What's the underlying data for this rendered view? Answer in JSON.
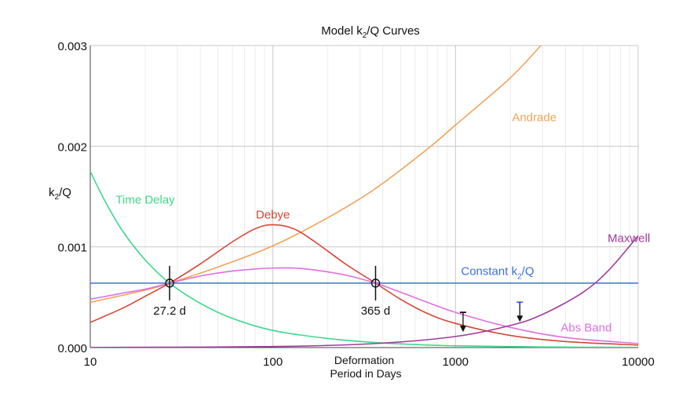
{
  "chart_data": {
    "type": "line",
    "title": {
      "pre": "Model k",
      "sub": "2",
      "post": "/Q Curves"
    },
    "ylabel": {
      "pre": "k",
      "sub": "2",
      "post": "/Q"
    },
    "xlabel": [
      "Deformation",
      "Period in Days"
    ],
    "x_scale": "log",
    "xlim": [
      10,
      10000
    ],
    "ylim": [
      0,
      0.003
    ],
    "grid": true,
    "x_ticks": [
      {
        "value": 10,
        "label": "10"
      },
      {
        "value": 100,
        "label": "100"
      },
      {
        "value": 1000,
        "label": "1000"
      },
      {
        "value": 10000,
        "label": "10000"
      }
    ],
    "y_ticks": [
      {
        "value": 0,
        "label": "0.000"
      },
      {
        "value": 0.001,
        "label": "0.001"
      },
      {
        "value": 0.002,
        "label": "0.002"
      },
      {
        "value": 0.003,
        "label": "0.003"
      }
    ],
    "series": [
      {
        "name": "Constant k2/Q",
        "label": {
          "pre": "Constant k",
          "sub": "2",
          "post": "/Q"
        },
        "color": "#3a6fe0",
        "label_at": {
          "x": 1700,
          "y": 0.00072
        },
        "x": [
          10,
          10000
        ],
        "y": [
          0.00064,
          0.00064
        ]
      },
      {
        "name": "Andrade",
        "label": {
          "pre": "Andrade"
        },
        "color": "#f0a35a",
        "label_at": {
          "x": 2700,
          "y": 0.00225
        },
        "x": [
          10,
          20,
          27.2,
          50,
          100,
          200,
          365,
          700,
          1000,
          2000,
          3000
        ],
        "y": [
          0.00045,
          0.00057,
          0.00064,
          0.0008,
          0.00101,
          0.00129,
          0.00158,
          0.00197,
          0.00221,
          0.00268,
          0.00302
        ]
      },
      {
        "name": "Debye",
        "label": {
          "pre": "Debye"
        },
        "color": "#d64535",
        "label_at": {
          "x": 100,
          "y": 0.00128
        },
        "x": [
          10,
          15,
          20,
          27.2,
          40,
          60,
          80,
          100,
          130,
          170,
          250,
          365,
          500,
          700,
          1000,
          2000,
          4000,
          10000
        ],
        "y": [
          0.00025,
          0.00039,
          0.00051,
          0.00064,
          0.00083,
          0.00105,
          0.00118,
          0.00122,
          0.00118,
          0.00105,
          0.00083,
          0.00064,
          0.00048,
          0.00034,
          0.00024,
          0.00012,
          6e-05,
          2.5e-05
        ]
      },
      {
        "name": "Abs Band",
        "label": {
          "pre": "Abs Band"
        },
        "color": "#e06ee0",
        "label_at": {
          "x": 5200,
          "y": 0.00016
        },
        "x": [
          10,
          15,
          20,
          27.2,
          40,
          60,
          80,
          100,
          130,
          170,
          250,
          365,
          500,
          700,
          1000,
          2000,
          4000,
          10000
        ],
        "y": [
          0.00048,
          0.00054,
          0.00058,
          0.00064,
          0.00071,
          0.00076,
          0.00078,
          0.00079,
          0.00079,
          0.00077,
          0.00072,
          0.00064,
          0.00055,
          0.00045,
          0.00035,
          0.0002,
          0.0001,
          4e-05
        ]
      },
      {
        "name": "Time Delay",
        "label": {
          "pre": "Time Delay"
        },
        "color": "#3dd88a",
        "label_at": {
          "x": 20,
          "y": 0.00143
        },
        "x": [
          10,
          12,
          15,
          20,
          27.2,
          40,
          60,
          100,
          200,
          365,
          700,
          1000,
          3000,
          10000
        ],
        "y": [
          0.00175,
          0.00146,
          0.00116,
          0.00087,
          0.00064,
          0.00044,
          0.00029,
          0.00017,
          9e-05,
          5e-05,
          2.5e-05,
          1.8e-05,
          6e-06,
          2e-06
        ]
      },
      {
        "name": "Maxwell",
        "label": {
          "pre": "Maxwell"
        },
        "color": "#a03c9c",
        "label_at": {
          "x": 8900,
          "y": 0.00105
        },
        "x": [
          10,
          100,
          365,
          1000,
          2000,
          3000,
          5000,
          7000,
          10000
        ],
        "y": [
          1e-06,
          1e-05,
          4e-05,
          0.00011,
          0.00022,
          0.00033,
          0.00055,
          0.00078,
          0.00111
        ]
      }
    ],
    "crossing_points": [
      {
        "x": 27.2,
        "y": 0.00064,
        "label": "27.2 d"
      },
      {
        "x": 365,
        "y": 0.00064,
        "label": "365 d"
      }
    ],
    "upper_limits": [
      {
        "x": 1100,
        "y": 0.00035,
        "color": "#111111"
      },
      {
        "x": 2250,
        "y": 0.00045,
        "color": "#3a6fe0"
      }
    ]
  }
}
